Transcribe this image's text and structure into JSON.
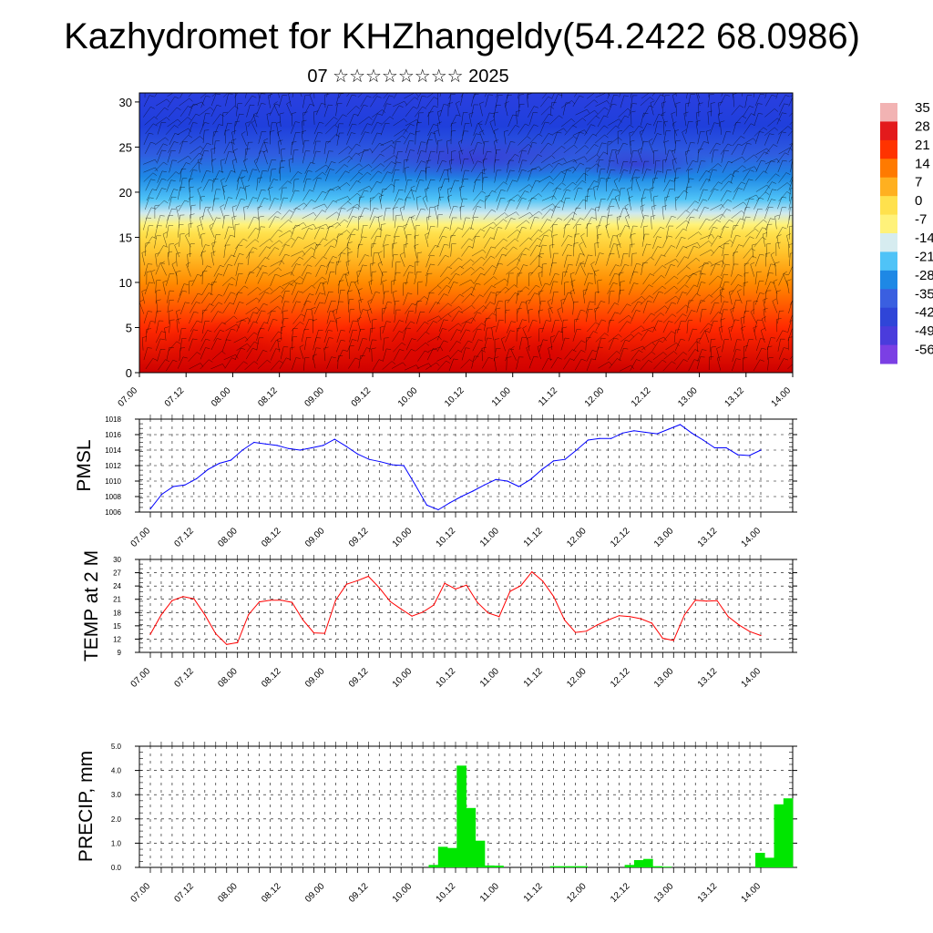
{
  "page": {
    "title": "Kazhydromet for KHZhangeldy(54.2422 68.0986)",
    "subtitle": "07 ☆☆☆☆☆☆☆☆ 2025"
  },
  "chart_data": [
    {
      "type": "heatmap",
      "name": "cross-section",
      "y_ticks": [
        0,
        5,
        10,
        15,
        20,
        25,
        30
      ],
      "ylim": [
        0,
        31
      ],
      "x_ticks": [
        "07.00",
        "07.12",
        "08.00",
        "08.12",
        "09.00",
        "09.12",
        "10.00",
        "10.12",
        "11.00",
        "11.12",
        "12.00",
        "12.12",
        "13.00",
        "13.12",
        "14.00"
      ],
      "colorbar_labels": [
        "35",
        "28",
        "21",
        "14",
        "7",
        "0",
        "-7",
        "-14",
        "-21",
        "-28",
        "-35",
        "-42",
        "-49",
        "-56"
      ],
      "colorbar_colors": [
        "#f2b3b3",
        "#e31a1c",
        "#ff3300",
        "#ff7a00",
        "#ffb020",
        "#ffe14d",
        "#fff27a",
        "#d6ecf0",
        "#4fc3f7",
        "#1e88e5",
        "#3a5fe0",
        "#2f45d8",
        "#4a3cdc",
        "#7b3fe4"
      ]
    },
    {
      "type": "line",
      "ylabel": "PMSL",
      "color": "#0000ff",
      "ylim": [
        1006,
        1018
      ],
      "y_ticks": [
        1006,
        1008,
        1010,
        1012,
        1014,
        1016,
        1018
      ],
      "x_ticks": [
        "07.00",
        "07.12",
        "08.00",
        "08.12",
        "09.00",
        "09.12",
        "10.00",
        "10.12",
        "11.00",
        "11.12",
        "12.00",
        "12.12",
        "13.00",
        "13.12",
        "14.00"
      ],
      "values": [
        1006.4,
        1008.3,
        1009.3,
        1009.5,
        1010.3,
        1011.5,
        1012.3,
        1012.7,
        1014.0,
        1015.0,
        1014.8,
        1014.6,
        1014.2,
        1014.0,
        1014.3,
        1014.6,
        1015.4,
        1014.5,
        1013.5,
        1012.8,
        1012.5,
        1012.1,
        1012.0,
        1009.5,
        1006.9,
        1006.3,
        1007.2,
        1008.0,
        1008.7,
        1009.5,
        1010.2,
        1010.0,
        1009.3,
        1010.2,
        1011.5,
        1012.6,
        1012.8,
        1014.0,
        1015.3,
        1015.5,
        1015.5,
        1016.2,
        1016.5,
        1016.3,
        1016.1,
        1016.7,
        1017.3,
        1016.2,
        1015.3,
        1014.3,
        1014.3,
        1013.4,
        1013.3,
        1014.0
      ]
    },
    {
      "type": "line",
      "ylabel": "TEMP at 2 M",
      "color": "#ff0000",
      "ylim": [
        9,
        30
      ],
      "y_ticks": [
        9,
        12,
        15,
        18,
        21,
        24,
        27,
        30
      ],
      "x_ticks": [
        "07.00",
        "07.12",
        "08.00",
        "08.12",
        "09.00",
        "09.12",
        "10.00",
        "10.12",
        "11.00",
        "11.12",
        "12.00",
        "12.12",
        "13.00",
        "13.12",
        "14.00"
      ],
      "values": [
        13.1,
        17.5,
        20.7,
        21.6,
        21.1,
        17.5,
        13.2,
        10.8,
        11.2,
        17.5,
        20.4,
        20.8,
        20.8,
        20.3,
        16.3,
        13.4,
        13.3,
        20.8,
        24.4,
        25.2,
        26.2,
        23.6,
        20.5,
        18.8,
        17.2,
        18.1,
        19.7,
        24.6,
        23.3,
        24.2,
        20.3,
        17.9,
        17.1,
        22.8,
        24.1,
        27.2,
        25.1,
        21.6,
        16.3,
        13.5,
        13.8,
        15.2,
        16.3,
        17.3,
        17.1,
        16.6,
        15.6,
        12.2,
        11.7,
        17.5,
        20.8,
        20.6,
        20.7,
        17.1,
        15.2,
        13.7,
        12.8
      ]
    },
    {
      "type": "bar",
      "ylabel": "PRECIP, mm",
      "color": "#00e600",
      "ylim": [
        0,
        5
      ],
      "y_ticks": [
        "0.0",
        "1.0",
        "2.0",
        "3.0",
        "4.0",
        "5.0"
      ],
      "x_ticks": [
        "07.00",
        "07.12",
        "08.00",
        "08.12",
        "09.00",
        "09.12",
        "10.00",
        "10.12",
        "11.00",
        "11.12",
        "12.00",
        "12.12",
        "13.00",
        "13.12",
        "14.00"
      ],
      "values": [
        0,
        0,
        0,
        0,
        0,
        0,
        0,
        0,
        0,
        0,
        0,
        0,
        0,
        0,
        0,
        0,
        0,
        0,
        0,
        0,
        0,
        0,
        0,
        0,
        0,
        0,
        0,
        0,
        0,
        0,
        0,
        0.1,
        0.85,
        0.8,
        4.2,
        2.45,
        1.1,
        0.08,
        0.07,
        0,
        0,
        0,
        0,
        0,
        0.05,
        0.05,
        0.05,
        0.05,
        0,
        0,
        0,
        0,
        0.1,
        0.3,
        0.35,
        0.05,
        0.03,
        0,
        0,
        0,
        0,
        0,
        0,
        0,
        0,
        0,
        0.6,
        0.4,
        2.6,
        2.85
      ]
    }
  ]
}
